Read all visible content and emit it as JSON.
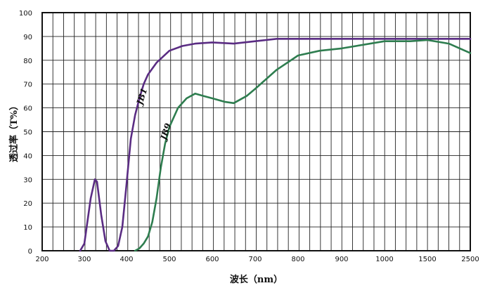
{
  "chart_data": {
    "type": "line",
    "xlabel": "波长（nm）",
    "ylabel": "透过率（T%）",
    "x_ticks": [
      "200",
      "300",
      "400",
      "500",
      "600",
      "700",
      "800",
      "900",
      "1000",
      "1500",
      "2500"
    ],
    "y_ticks": [
      "0",
      "10",
      "20",
      "30",
      "40",
      "50",
      "60",
      "70",
      "80",
      "90",
      "100"
    ],
    "ylim": [
      0,
      100
    ],
    "x_axis_note": "non-linear axis; ticks at 200–1000 nm then 1500 and 2500 nm",
    "grid": true,
    "series": [
      {
        "name": "JB1",
        "color": "#5a2c83",
        "x": [
          290,
          300,
          315,
          325,
          330,
          340,
          350,
          360,
          370,
          380,
          390,
          400,
          410,
          420,
          430,
          440,
          450,
          470,
          500,
          530,
          560,
          600,
          650,
          700,
          750,
          800,
          900,
          1000,
          1500,
          2500
        ],
        "y": [
          0,
          3,
          22,
          30,
          29,
          15,
          4,
          0,
          0,
          2,
          10,
          28,
          47,
          57,
          64,
          70,
          74,
          79,
          84,
          86,
          87,
          87.5,
          87,
          88,
          89,
          89,
          89,
          89,
          89,
          89
        ]
      },
      {
        "name": "JB9",
        "color": "#2e7d4f",
        "x": [
          420,
          430,
          440,
          450,
          460,
          470,
          480,
          490,
          500,
          520,
          540,
          560,
          580,
          600,
          630,
          650,
          680,
          700,
          750,
          800,
          850,
          900,
          1000,
          1300,
          1500,
          2000,
          2500
        ],
        "y": [
          0,
          1,
          3,
          6,
          12,
          22,
          35,
          45,
          52,
          60,
          64,
          66,
          65,
          64,
          62.5,
          62,
          65,
          68,
          76,
          82,
          84,
          85,
          88,
          88,
          88.5,
          87,
          83
        ]
      }
    ]
  }
}
